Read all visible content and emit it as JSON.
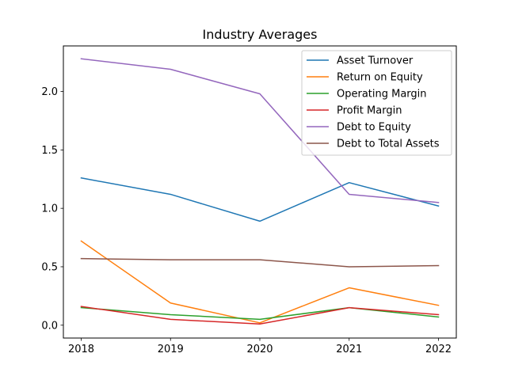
{
  "chart_data": {
    "type": "line",
    "title": "Industry Averages",
    "xlabel": "",
    "ylabel": "",
    "x": [
      "2018",
      "2019",
      "2020",
      "2021",
      "2022"
    ],
    "xticks": [
      "2018",
      "2019",
      "2020",
      "2021",
      "2022"
    ],
    "yticks": [
      "0.0",
      "0.5",
      "1.0",
      "1.5",
      "2.0"
    ],
    "ylim": [
      -0.11,
      2.39
    ],
    "grid": false,
    "legend_position": "top-right",
    "series": [
      {
        "name": "Asset Turnover",
        "color": "#1f77b4",
        "values": [
          1.26,
          1.12,
          0.89,
          1.22,
          1.02
        ]
      },
      {
        "name": "Return on Equity",
        "color": "#ff7f0e",
        "values": [
          0.72,
          0.19,
          0.02,
          0.32,
          0.17
        ]
      },
      {
        "name": "Operating Margin",
        "color": "#2ca02c",
        "values": [
          0.15,
          0.09,
          0.05,
          0.15,
          0.07
        ]
      },
      {
        "name": "Profit Margin",
        "color": "#d62728",
        "values": [
          0.16,
          0.05,
          0.01,
          0.15,
          0.09
        ]
      },
      {
        "name": "Debt to Equity",
        "color": "#9467bd",
        "values": [
          2.28,
          2.19,
          1.98,
          1.12,
          1.05
        ]
      },
      {
        "name": "Debt to Total Assets",
        "color": "#8c564b",
        "values": [
          0.57,
          0.56,
          0.56,
          0.5,
          0.51
        ]
      }
    ]
  }
}
